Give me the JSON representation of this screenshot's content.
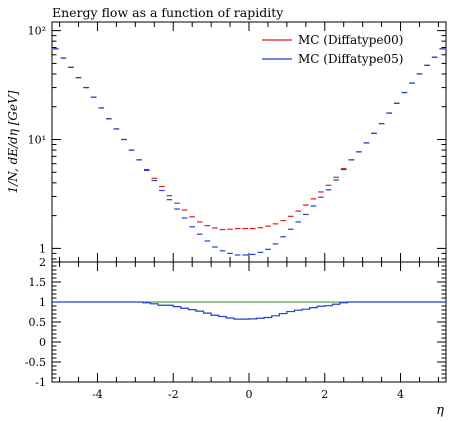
{
  "chart_data": [
    {
      "type": "line",
      "title": "Energy flow as a function of rapidity",
      "ylabel": "1/N, dE/dη [GeV]",
      "xlim": [
        -5.2,
        5.2
      ],
      "ylim": [
        0.75,
        120
      ],
      "y_scale": "log",
      "y_ticks": [
        {
          "v": 1,
          "label": "1"
        },
        {
          "v": 10,
          "label": "10¹"
        },
        {
          "v": 100,
          "label": "10²"
        }
      ],
      "legend_position": "top-right",
      "bin_width": 0.2,
      "x": [
        -5.1,
        -4.9,
        -4.7,
        -4.5,
        -4.3,
        -4.1,
        -3.9,
        -3.7,
        -3.5,
        -3.3,
        -3.1,
        -2.9,
        -2.7,
        -2.5,
        -2.3,
        -2.1,
        -1.9,
        -1.7,
        -1.5,
        -1.3,
        -1.1,
        -0.9,
        -0.7,
        -0.5,
        -0.3,
        -0.1,
        0.1,
        0.3,
        0.5,
        0.7,
        0.9,
        1.1,
        1.3,
        1.5,
        1.7,
        1.9,
        2.1,
        2.3,
        2.5,
        2.7,
        2.9,
        3.1,
        3.3,
        3.5,
        3.7,
        3.9,
        4.1,
        4.3,
        4.5,
        4.7,
        4.9,
        5.1
      ],
      "series": [
        {
          "name": "MC (Diffatype00)",
          "color": "#e41a1c",
          "values": [
            68,
            56,
            46,
            37,
            30,
            24.5,
            19.5,
            15.5,
            12.5,
            10,
            8,
            6.5,
            5.3,
            4.4,
            3.7,
            3.05,
            2.6,
            2.25,
            1.95,
            1.75,
            1.62,
            1.54,
            1.49,
            1.5,
            1.52,
            1.52,
            1.52,
            1.55,
            1.6,
            1.68,
            1.8,
            1.97,
            2.2,
            2.5,
            2.85,
            3.3,
            3.8,
            4.5,
            5.4,
            6.5,
            7.7,
            9.3,
            11.4,
            14,
            17.5,
            21.5,
            27,
            33,
            40,
            48,
            57,
            68
          ]
        },
        {
          "name": "MC (Diffatype05)",
          "color": "#1f3fd6",
          "values": [
            68,
            56,
            46,
            37,
            30,
            24.5,
            19.5,
            15.5,
            12.5,
            10,
            8,
            6.5,
            5.2,
            4.2,
            3.4,
            2.8,
            2.3,
            1.9,
            1.58,
            1.35,
            1.17,
            1.03,
            0.95,
            0.9,
            0.87,
            0.87,
            0.88,
            0.92,
            0.98,
            1.1,
            1.28,
            1.5,
            1.75,
            2.05,
            2.45,
            2.95,
            3.45,
            4.25,
            5.3,
            6.5,
            7.7,
            9.3,
            11.4,
            14,
            17.5,
            21.5,
            27,
            33,
            40,
            48,
            57,
            68
          ]
        }
      ]
    },
    {
      "type": "line",
      "xlabel": "η",
      "xlim": [
        -5.2,
        5.2
      ],
      "ylim": [
        -1,
        2
      ],
      "x_ticks": [
        {
          "v": -4,
          "label": "-4"
        },
        {
          "v": -2,
          "label": "-2"
        },
        {
          "v": 0,
          "label": "0"
        },
        {
          "v": 2,
          "label": "2"
        },
        {
          "v": 4,
          "label": "4"
        }
      ],
      "y_ticks": [
        {
          "v": 2,
          "label": "2"
        },
        {
          "v": 1.5,
          "label": "1.5"
        },
        {
          "v": 1,
          "label": "1"
        },
        {
          "v": 0.5,
          "label": "0.5"
        },
        {
          "v": 0,
          "label": "0"
        },
        {
          "v": -0.5,
          "label": "-0.5"
        },
        {
          "v": -1,
          "label": "-1"
        }
      ],
      "reference_line": {
        "value": 1,
        "color": "#2e8b2e"
      },
      "ratio_color": "#1f3fd6"
    }
  ]
}
